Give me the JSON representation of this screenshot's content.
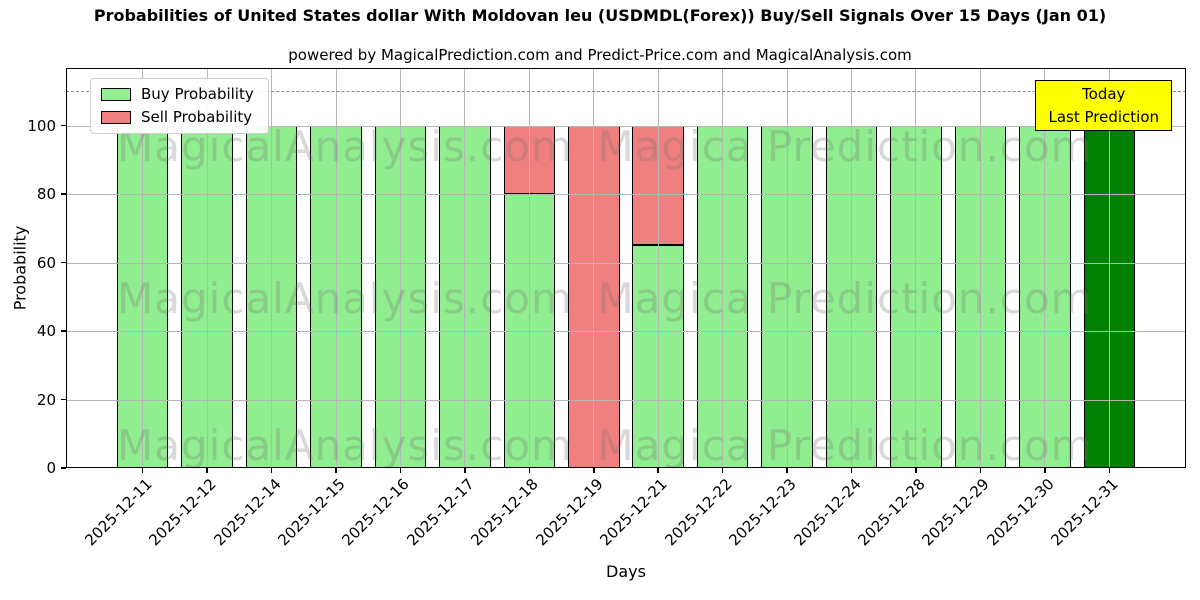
{
  "chart_data": {
    "type": "bar",
    "stacked": true,
    "title": "Probabilities of United States dollar With Moldovan leu (USDMDL(Forex)) Buy/Sell Signals Over 15 Days (Jan 01)",
    "subtitle": "powered by MagicalPrediction.com and Predict-Price.com and MagicalAnalysis.com",
    "xlabel": "Days",
    "ylabel": "Probability",
    "categories": [
      "2025-12-11",
      "2025-12-12",
      "2025-12-14",
      "2025-12-15",
      "2025-12-16",
      "2025-12-17",
      "2025-12-18",
      "2025-12-19",
      "2025-12-21",
      "2025-12-22",
      "2025-12-23",
      "2025-12-24",
      "2025-12-28",
      "2025-12-29",
      "2025-12-30",
      "2025-12-31"
    ],
    "series": [
      {
        "name": "Buy Probability",
        "color": "#90ee90",
        "values": [
          100,
          100,
          100,
          100,
          100,
          100,
          80,
          0,
          65,
          100,
          100,
          100,
          100,
          100,
          100,
          100
        ]
      },
      {
        "name": "Sell Probability",
        "color": "#f08080",
        "values": [
          0,
          0,
          0,
          0,
          0,
          0,
          20,
          100,
          35,
          0,
          0,
          0,
          0,
          0,
          0,
          0
        ]
      }
    ],
    "highlight_last_bar": {
      "index": 15,
      "color": "#008000",
      "meaning": "Today / Last Prediction"
    },
    "bar_edge_color": "#000000",
    "yticks": [
      0,
      20,
      40,
      60,
      80,
      100
    ],
    "ylim": [
      0,
      116.8
    ],
    "grid": true,
    "dashed_line_y": 110,
    "legend_position": "upper left",
    "annotation_box": {
      "line1": "Today",
      "line2": "Last Prediction",
      "bg_color": "#ffff00"
    },
    "watermark_left": "MagicalAnalysis.com",
    "watermark_right": "Magica Prediction.com"
  }
}
